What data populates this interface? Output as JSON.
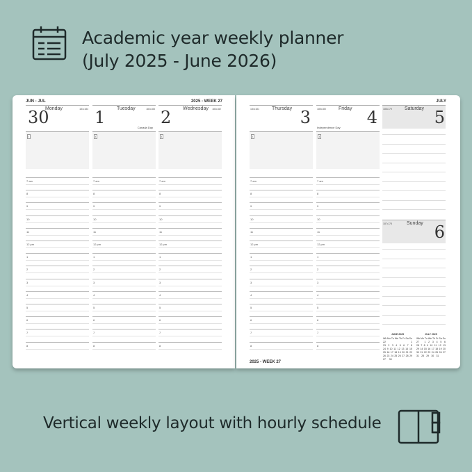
{
  "headline": {
    "line1": "Academic year weekly planner",
    "line2": "(July 2025 - June 2026)"
  },
  "tagline": "Vertical weekly layout with hourly schedule",
  "icons": {
    "top": "calendar-icon",
    "bottom": "open-book-icon"
  },
  "colors": {
    "background": "#a4c3bd",
    "weekend": "#e8e8e8",
    "text": "#1e2a2a"
  },
  "left_page": {
    "months": "JUN - JUL",
    "week": "2025 - WEEK 27"
  },
  "right_page": {
    "month": "JULY",
    "footer": "2025 - WEEK 27"
  },
  "weekdays": [
    {
      "num": "30",
      "name": "Monday",
      "doy": "181•184",
      "holiday": ""
    },
    {
      "num": "1",
      "name": "Tuesday",
      "doy": "182•183",
      "holiday": "Canada Day"
    },
    {
      "num": "2",
      "name": "Wednesday",
      "doy": "183•182",
      "holiday": ""
    },
    {
      "num": "3",
      "name": "Thursday",
      "doy": "184•181",
      "holiday": ""
    },
    {
      "num": "4",
      "name": "Friday",
      "doy": "185•180",
      "holiday": "Independence Day"
    }
  ],
  "weekend": [
    {
      "num": "5",
      "name": "Saturday",
      "doy": "186•179"
    },
    {
      "num": "6",
      "name": "Sunday",
      "doy": "187•178"
    }
  ],
  "box_marker": "!",
  "hours": [
    "7 am",
    "8",
    "9",
    "10",
    "11",
    "12 pm",
    "1",
    "2",
    "3",
    "4",
    "5",
    "6",
    "7",
    "8"
  ],
  "mini_calendars": [
    {
      "title": "JUNE 2025",
      "head": [
        "Wk",
        "Mo",
        "Tu",
        "We",
        "Th",
        "Fr",
        "Sa",
        "Su"
      ],
      "rows": [
        [
          "22",
          "",
          "",
          "",
          "",
          "",
          "",
          "1"
        ],
        [
          "23",
          "2",
          "3",
          "4",
          "5",
          "6",
          "7",
          "8"
        ],
        [
          "24",
          "9",
          "10",
          "11",
          "12",
          "13",
          "14",
          "15"
        ],
        [
          "25",
          "16",
          "17",
          "18",
          "19",
          "20",
          "21",
          "22"
        ],
        [
          "26",
          "23",
          "24",
          "25",
          "26",
          "27",
          "28",
          "29"
        ],
        [
          "27",
          "30",
          "",
          "",
          "",
          "",
          "",
          ""
        ]
      ]
    },
    {
      "title": "JULY 2025",
      "head": [
        "Wk",
        "Mo",
        "Tu",
        "We",
        "Th",
        "Fr",
        "Sa",
        "Su"
      ],
      "rows": [
        [
          "27",
          "",
          "1",
          "2",
          "3",
          "4",
          "5",
          "6"
        ],
        [
          "28",
          "7",
          "8",
          "9",
          "10",
          "11",
          "12",
          "13"
        ],
        [
          "29",
          "14",
          "15",
          "16",
          "17",
          "18",
          "19",
          "20"
        ],
        [
          "30",
          "21",
          "22",
          "23",
          "24",
          "25",
          "26",
          "27"
        ],
        [
          "31",
          "28",
          "29",
          "30",
          "31",
          "",
          "",
          ""
        ]
      ]
    }
  ]
}
